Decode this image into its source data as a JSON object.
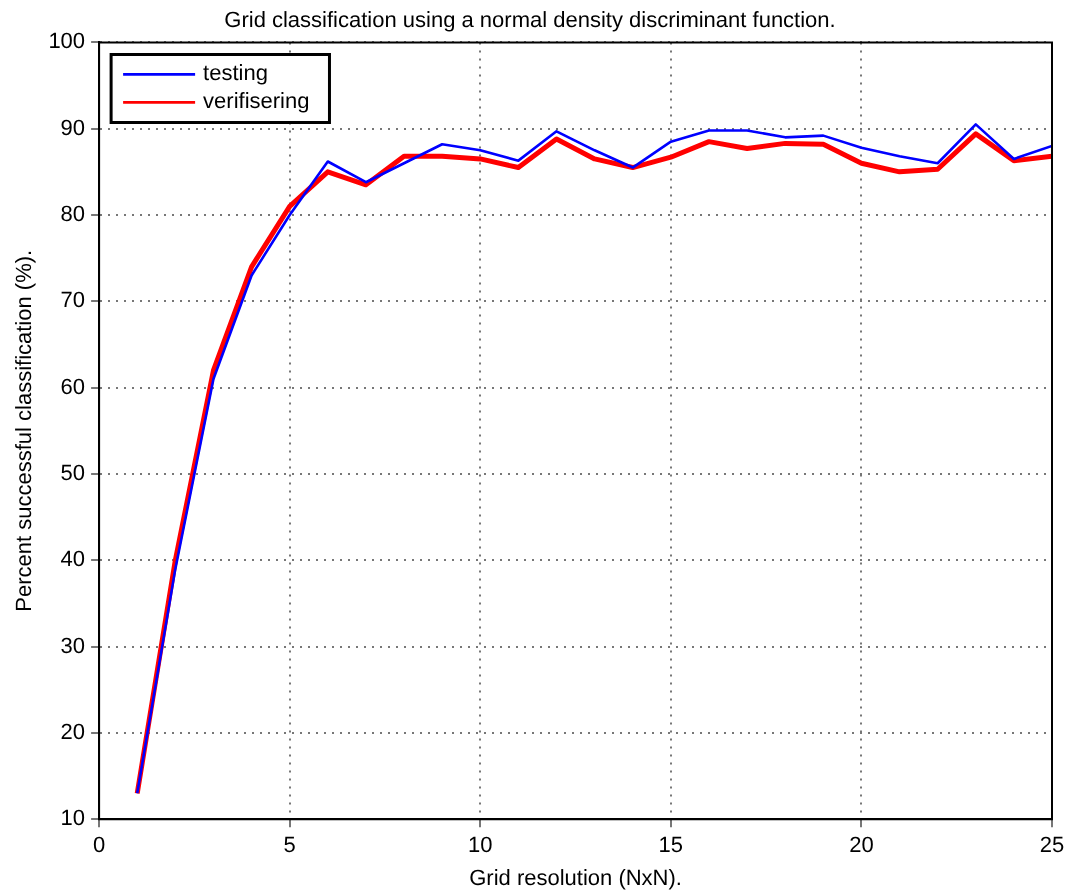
{
  "chart_data": {
    "type": "line",
    "title": "Grid classification using a normal density discriminant function.",
    "xlabel": "Grid resolution (NxN).",
    "ylabel": "Percent successful classification (%).",
    "x": [
      1,
      2,
      3,
      4,
      5,
      6,
      7,
      8,
      9,
      10,
      11,
      12,
      13,
      14,
      15,
      16,
      17,
      18,
      19,
      20,
      21,
      22,
      23,
      24,
      25
    ],
    "series": [
      {
        "name": "testing",
        "color": "#0000ff",
        "values": [
          13,
          39,
          61,
          73,
          80,
          86.2,
          83.8,
          86,
          88.2,
          87.5,
          86.3,
          89.7,
          87.5,
          85.5,
          88.5,
          89.8,
          89.8,
          89,
          89.2,
          87.8,
          86.8,
          86,
          90.5,
          86.5,
          88
        ]
      },
      {
        "name": "verifisering",
        "color": "#ff0000",
        "values": [
          13,
          40,
          62,
          74,
          81,
          85,
          83.5,
          86.8,
          86.8,
          86.5,
          85.5,
          88.8,
          86.5,
          85.5,
          86.7,
          88.5,
          87.7,
          88.3,
          88.2,
          86,
          85,
          85.3,
          89.4,
          86.3,
          86.8
        ]
      }
    ],
    "xlim": [
      0,
      25
    ],
    "xticks": [
      0,
      5,
      10,
      15,
      20,
      25
    ],
    "ylim": [
      10,
      100
    ],
    "yticks": [
      10,
      20,
      30,
      40,
      50,
      60,
      70,
      80,
      90,
      100
    ],
    "grid": true,
    "legend": "top left",
    "marker": "none",
    "line_style": "solid"
  }
}
